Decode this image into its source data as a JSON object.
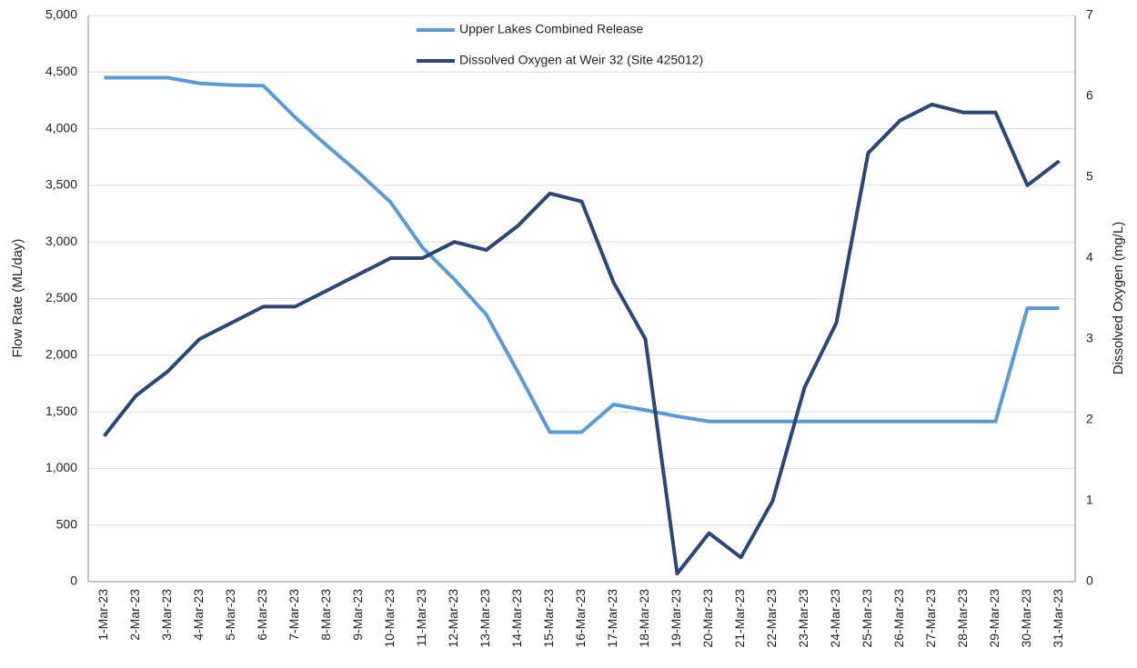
{
  "chart_data": {
    "type": "line",
    "categories": [
      "1-Mar-23",
      "2-Mar-23",
      "3-Mar-23",
      "4-Mar-23",
      "5-Mar-23",
      "6-Mar-23",
      "7-Mar-23",
      "8-Mar-23",
      "9-Mar-23",
      "10-Mar-23",
      "11-Mar-23",
      "12-Mar-23",
      "13-Mar-23",
      "14-Mar-23",
      "15-Mar-23",
      "16-Mar-23",
      "17-Mar-23",
      "18-Mar-23",
      "19-Mar-23",
      "20-Mar-23",
      "21-Mar-23",
      "22-Mar-23",
      "23-Mar-23",
      "24-Mar-23",
      "25-Mar-23",
      "26-Mar-23",
      "27-Mar-23",
      "28-Mar-23",
      "29-Mar-23",
      "30-Mar-23",
      "31-Mar-23"
    ],
    "series": [
      {
        "name": "Upper Lakes Combined Release",
        "color": "#5b9bd5",
        "values": [
          4450,
          4450,
          4450,
          4400,
          4385,
          4380,
          4100,
          3850,
          3610,
          3350,
          2950,
          2670,
          2360,
          1850,
          1320,
          1320,
          1565,
          1515,
          1460,
          1415,
          1415,
          1415,
          1415,
          1415,
          1415,
          1415,
          1415,
          1415,
          1415,
          2415,
          2415
        ]
      },
      {
        "name": "Dissolved Oxygen at Weir 32 (Site 425012)",
        "color": "#2b4778",
        "axis": "y2",
        "values": [
          1.8,
          2.3,
          2.6,
          3.0,
          3.2,
          3.4,
          3.4,
          3.6,
          3.8,
          4.0,
          4.0,
          4.2,
          4.1,
          4.4,
          4.8,
          4.7,
          3.7,
          3.0,
          0.1,
          0.6,
          0.3,
          1.0,
          2.4,
          3.2,
          5.3,
          5.7,
          5.9,
          5.8,
          5.8,
          4.9,
          5.2
        ]
      }
    ],
    "ylabel": "Flow Rate (ML/day)",
    "y2label": "Dissolved Oxygen (mg/L)",
    "ylim": [
      0,
      5000
    ],
    "yticks": [
      0,
      500,
      {
        "value": 1000,
        "label": "1,000"
      },
      {
        "value": 1500,
        "label": "1,500"
      },
      {
        "value": 2000,
        "label": "2,000"
      },
      {
        "value": 2500,
        "label": "2,500"
      },
      {
        "value": 3000,
        "label": "3,000"
      },
      {
        "value": 3500,
        "label": "3,500"
      },
      {
        "value": 4000,
        "label": "4,000"
      },
      {
        "value": 4500,
        "label": "4,500"
      },
      {
        "value": 5000,
        "label": "5,000"
      }
    ],
    "y2lim": [
      0,
      7
    ],
    "y2ticks": [
      0,
      1,
      2,
      3,
      4,
      5,
      6,
      7
    ],
    "grid": true,
    "legend": "top"
  }
}
